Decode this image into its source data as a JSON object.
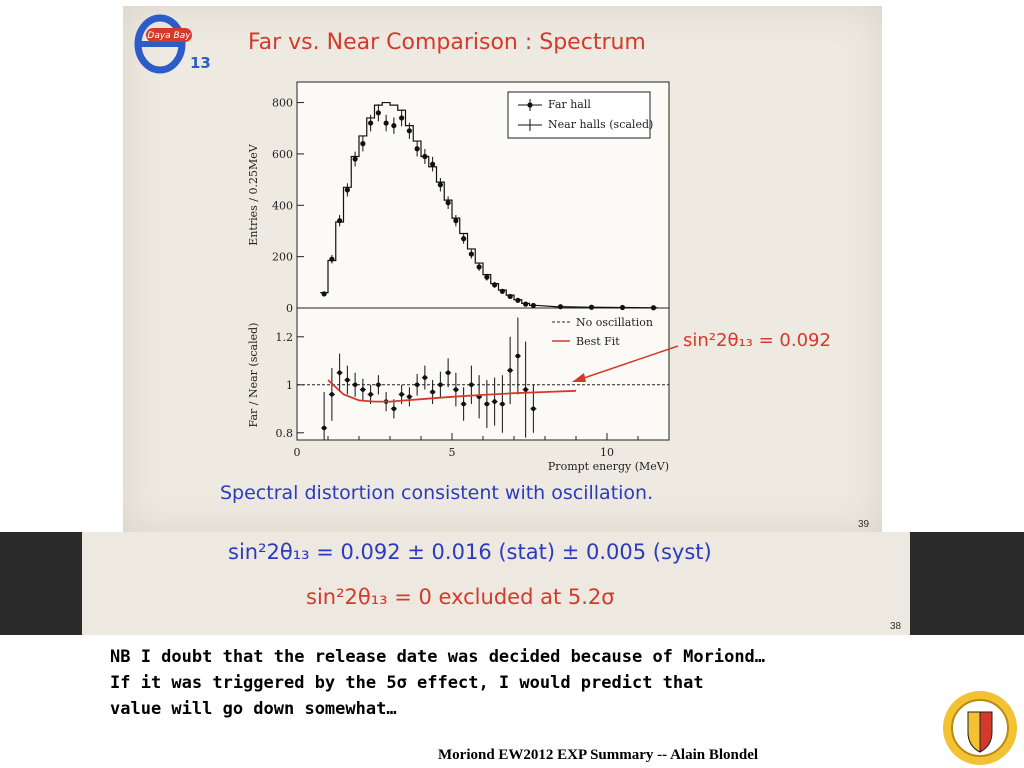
{
  "slide_top": {
    "logo_text": "Daya Bay",
    "logo_sub": "13",
    "title": "Far vs. Near Comparison : Spectrum",
    "fit_label": "sin²2θ₁₃ = 0.092",
    "caption": "Spectral distortion consistent with oscillation.",
    "page_number": "39"
  },
  "slide_bottom": {
    "line1": "sin²2θ₁₃ = 0.092 ± 0.016 (stat) ± 0.005 (syst)",
    "line2": "sin²2θ₁₃ = 0 excluded at 5.2σ",
    "page_number": "38"
  },
  "note": {
    "line1": "NB I doubt that the release date was decided because of Moriond…",
    "line2": "If it was triggered by the 5σ effect, I would predict that",
    "line3": "value will go down somewhat…"
  },
  "footer": "Moriond EW2012 EXP Summary -- Alain Blondel",
  "colors": {
    "title_red": "#d43a2a",
    "text_blue": "#2b3bbf",
    "dark_band": "#2a2a2a"
  },
  "chart_data": [
    {
      "type": "line",
      "ylabel": "Entries / 0.25MeV",
      "xlim": [
        0,
        12
      ],
      "ylim": [
        0,
        880
      ],
      "yticks": [
        0,
        200,
        400,
        600,
        800
      ],
      "legend": [
        "Far hall",
        "Near halls (scaled)"
      ],
      "legend_position": "top-right",
      "x": [
        0.875,
        1.125,
        1.375,
        1.625,
        1.875,
        2.125,
        2.375,
        2.625,
        2.875,
        3.125,
        3.375,
        3.625,
        3.875,
        4.125,
        4.375,
        4.625,
        4.875,
        5.125,
        5.375,
        5.625,
        5.875,
        6.125,
        6.375,
        6.625,
        6.875,
        7.125,
        7.375,
        7.625,
        8.5,
        9.5,
        10.5,
        11.5
      ],
      "series": [
        {
          "name": "Far hall",
          "values": [
            55,
            190,
            340,
            460,
            580,
            640,
            720,
            760,
            720,
            710,
            740,
            690,
            620,
            590,
            560,
            480,
            410,
            340,
            270,
            210,
            160,
            120,
            90,
            65,
            45,
            30,
            15,
            10,
            5,
            3,
            2,
            1
          ]
        },
        {
          "name": "Near halls (scaled)",
          "values": [
            60,
            185,
            335,
            470,
            590,
            670,
            740,
            790,
            800,
            790,
            770,
            710,
            650,
            590,
            550,
            490,
            420,
            350,
            290,
            230,
            175,
            130,
            95,
            70,
            50,
            32,
            18,
            10,
            5,
            3,
            2,
            1
          ]
        }
      ]
    },
    {
      "type": "scatter",
      "xlabel": "Prompt energy (MeV)",
      "ylabel": "Far / Near (scaled)",
      "xlim": [
        0,
        12
      ],
      "xticks": [
        0,
        5,
        10
      ],
      "ylim": [
        0.77,
        1.32
      ],
      "yticks": [
        0.8,
        1,
        1.2
      ],
      "legend": [
        "No oscillation",
        "Best Fit"
      ],
      "legend_position": "top-right",
      "reference_line": 1.0,
      "series": [
        {
          "name": "data",
          "x": [
            0.875,
            1.125,
            1.375,
            1.625,
            1.875,
            2.125,
            2.375,
            2.625,
            2.875,
            3.125,
            3.375,
            3.625,
            3.875,
            4.125,
            4.375,
            4.625,
            4.875,
            5.125,
            5.375,
            5.625,
            5.875,
            6.125,
            6.375,
            6.625,
            6.875,
            7.125,
            7.375,
            7.625
          ],
          "y": [
            0.82,
            0.96,
            1.05,
            1.02,
            1.0,
            0.98,
            0.96,
            1.0,
            0.93,
            0.9,
            0.96,
            0.95,
            1.0,
            1.03,
            0.97,
            1.0,
            1.05,
            0.98,
            0.92,
            1.0,
            0.95,
            0.92,
            0.93,
            0.92,
            1.06,
            1.12,
            0.98,
            0.9
          ],
          "err": [
            0.15,
            0.11,
            0.08,
            0.06,
            0.05,
            0.045,
            0.04,
            0.04,
            0.04,
            0.04,
            0.04,
            0.04,
            0.045,
            0.05,
            0.05,
            0.055,
            0.06,
            0.07,
            0.07,
            0.08,
            0.09,
            0.1,
            0.1,
            0.12,
            0.14,
            0.16,
            0.2,
            0.1
          ]
        },
        {
          "name": "Best Fit",
          "x": [
            1.0,
            1.5,
            2.0,
            2.5,
            3.0,
            3.5,
            4.0,
            5.0,
            6.0,
            7.0,
            8.0,
            9.0
          ],
          "y": [
            1.02,
            0.96,
            0.935,
            0.93,
            0.93,
            0.935,
            0.94,
            0.95,
            0.958,
            0.965,
            0.97,
            0.975
          ]
        }
      ]
    }
  ]
}
